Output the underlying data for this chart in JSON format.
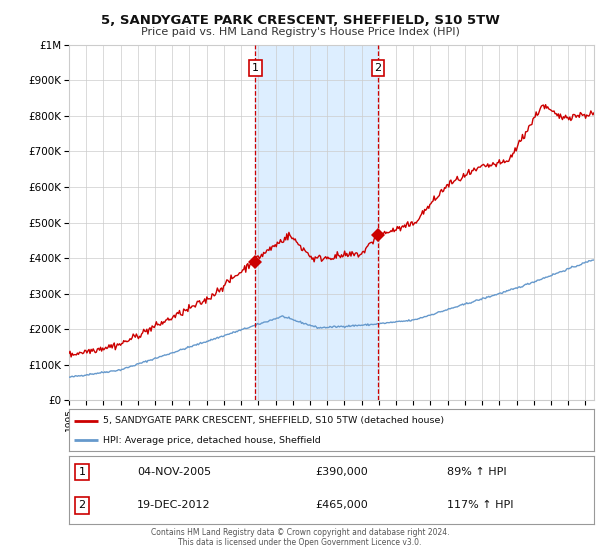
{
  "title": "5, SANDYGATE PARK CRESCENT, SHEFFIELD, S10 5TW",
  "subtitle": "Price paid vs. HM Land Registry's House Price Index (HPI)",
  "legend_line1": "5, SANDYGATE PARK CRESCENT, SHEFFIELD, S10 5TW (detached house)",
  "legend_line2": "HPI: Average price, detached house, Sheffield",
  "footer1": "Contains HM Land Registry data © Crown copyright and database right 2024.",
  "footer2": "This data is licensed under the Open Government Licence v3.0.",
  "annotation1_label": "1",
  "annotation1_date": "04-NOV-2005",
  "annotation1_price": "£390,000",
  "annotation1_hpi": "89% ↑ HPI",
  "annotation2_label": "2",
  "annotation2_date": "19-DEC-2012",
  "annotation2_price": "£465,000",
  "annotation2_hpi": "117% ↑ HPI",
  "vline1_x": 2005.83,
  "vline2_x": 2012.96,
  "point1_x": 2005.83,
  "point1_y": 390000,
  "point2_x": 2012.96,
  "point2_y": 465000,
  "red_color": "#cc0000",
  "blue_color": "#6699cc",
  "shading_color": "#ddeeff",
  "background_color": "#ffffff",
  "grid_color": "#cccccc",
  "ylim": [
    0,
    1000000
  ],
  "xlim": [
    1995,
    2025.5
  ],
  "yticks": [
    0,
    100000,
    200000,
    300000,
    400000,
    500000,
    600000,
    700000,
    800000,
    900000,
    1000000
  ]
}
